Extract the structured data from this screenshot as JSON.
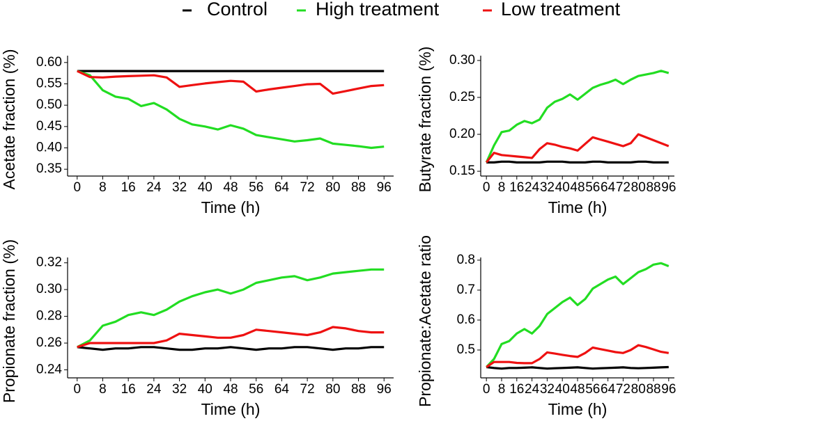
{
  "legend": {
    "items": [
      {
        "name": "Control",
        "color": "#000000"
      },
      {
        "name": "High treatment",
        "color": "#22dd22"
      },
      {
        "name": "Low treatment",
        "color": "#ee1111"
      }
    ]
  },
  "chart_data": [
    {
      "type": "line",
      "x_label": "Time (h)",
      "y_label": "Acetate fraction (%)",
      "x": [
        0,
        4,
        8,
        12,
        16,
        20,
        24,
        28,
        32,
        36,
        40,
        44,
        48,
        52,
        56,
        60,
        64,
        68,
        72,
        76,
        80,
        84,
        88,
        92,
        96
      ],
      "xlim": [
        -3,
        99
      ],
      "xticks": [
        0,
        8,
        16,
        24,
        32,
        40,
        48,
        56,
        64,
        72,
        80,
        88,
        96
      ],
      "ylim": [
        0.334,
        0.616
      ],
      "yticks": [
        {
          "value": 0.35,
          "label": "0.35"
        },
        {
          "value": 0.4,
          "label": "0.40"
        },
        {
          "value": 0.45,
          "label": "0.45"
        },
        {
          "value": 0.5,
          "label": "0.50"
        },
        {
          "value": 0.55,
          "label": "0.55"
        },
        {
          "value": 0.6,
          "label": "0.60"
        }
      ],
      "series": [
        {
          "color": "#000000",
          "values": [
            0.58,
            0.58,
            0.58,
            0.58,
            0.58,
            0.58,
            0.58,
            0.58,
            0.58,
            0.58,
            0.58,
            0.58,
            0.58,
            0.58,
            0.58,
            0.58,
            0.58,
            0.58,
            0.58,
            0.58,
            0.58,
            0.58,
            0.58,
            0.58,
            0.58
          ]
        },
        {
          "color": "#22dd22",
          "values": [
            0.58,
            0.57,
            0.535,
            0.52,
            0.515,
            0.498,
            0.505,
            0.49,
            0.468,
            0.455,
            0.45,
            0.443,
            0.453,
            0.445,
            0.43,
            0.425,
            0.42,
            0.415,
            0.418,
            0.422,
            0.41,
            0.407,
            0.404,
            0.4,
            0.403
          ]
        },
        {
          "color": "#ee1111",
          "values": [
            0.58,
            0.566,
            0.565,
            0.567,
            0.568,
            0.569,
            0.57,
            0.565,
            0.543,
            0.547,
            0.551,
            0.554,
            0.557,
            0.555,
            0.532,
            0.537,
            0.541,
            0.545,
            0.549,
            0.55,
            0.527,
            0.533,
            0.539,
            0.545,
            0.547
          ]
        }
      ]
    },
    {
      "type": "line",
      "x_label": "Time (h)",
      "y_label": "Butyrate fraction (%)",
      "x": [
        0,
        4,
        8,
        12,
        16,
        20,
        24,
        28,
        32,
        36,
        40,
        44,
        48,
        52,
        56,
        60,
        64,
        68,
        72,
        76,
        80,
        84,
        88,
        92,
        96
      ],
      "xlim": [
        -3,
        99
      ],
      "xticks": [
        0,
        8,
        16,
        24,
        32,
        40,
        48,
        56,
        64,
        72,
        80,
        88,
        96
      ],
      "ylim": [
        0.1435,
        0.3065
      ],
      "yticks": [
        0.15,
        {
          "value": 0.2,
          "label": "0.20"
        },
        0.25,
        {
          "value": 0.3,
          "label": "0.30"
        }
      ],
      "series": [
        {
          "color": "#000000",
          "values": [
            0.162,
            0.162,
            0.163,
            0.163,
            0.162,
            0.162,
            0.162,
            0.162,
            0.163,
            0.163,
            0.163,
            0.162,
            0.162,
            0.162,
            0.163,
            0.163,
            0.162,
            0.162,
            0.162,
            0.162,
            0.163,
            0.163,
            0.162,
            0.162,
            0.162
          ]
        },
        {
          "color": "#22dd22",
          "values": [
            0.162,
            0.185,
            0.203,
            0.205,
            0.213,
            0.218,
            0.215,
            0.22,
            0.236,
            0.244,
            0.248,
            0.254,
            0.247,
            0.255,
            0.263,
            0.267,
            0.27,
            0.274,
            0.268,
            0.274,
            0.279,
            0.281,
            0.283,
            0.286,
            0.283
          ]
        },
        {
          "color": "#ee1111",
          "values": [
            0.162,
            0.175,
            0.172,
            0.171,
            0.17,
            0.169,
            0.168,
            0.18,
            0.188,
            0.186,
            0.183,
            0.181,
            0.178,
            0.187,
            0.196,
            0.193,
            0.19,
            0.187,
            0.184,
            0.188,
            0.2,
            0.196,
            0.192,
            0.188,
            0.184
          ]
        }
      ]
    },
    {
      "type": "line",
      "x_label": "Time (h)",
      "y_label": "Propionate fraction (%)",
      "x": [
        0,
        4,
        8,
        12,
        16,
        20,
        24,
        28,
        32,
        36,
        40,
        44,
        48,
        52,
        56,
        60,
        64,
        68,
        72,
        76,
        80,
        84,
        88,
        92,
        96
      ],
      "xlim": [
        -3,
        99
      ],
      "xticks": [
        0,
        8,
        16,
        24,
        32,
        40,
        48,
        56,
        64,
        72,
        80,
        88,
        96
      ],
      "ylim": [
        0.234,
        0.324
      ],
      "yticks": [
        0.24,
        0.26,
        0.28,
        {
          "value": 0.3,
          "label": "0.30"
        },
        0.32
      ],
      "series": [
        {
          "color": "#000000",
          "values": [
            0.257,
            0.256,
            0.255,
            0.256,
            0.256,
            0.257,
            0.257,
            0.256,
            0.255,
            0.255,
            0.256,
            0.256,
            0.257,
            0.256,
            0.255,
            0.256,
            0.256,
            0.257,
            0.257,
            0.256,
            0.255,
            0.256,
            0.256,
            0.257,
            0.257
          ]
        },
        {
          "color": "#22dd22",
          "values": [
            0.257,
            0.262,
            0.273,
            0.276,
            0.281,
            0.283,
            0.281,
            0.285,
            0.291,
            0.295,
            0.298,
            0.3,
            0.297,
            0.3,
            0.305,
            0.307,
            0.309,
            0.31,
            0.307,
            0.309,
            0.312,
            0.313,
            0.314,
            0.315,
            0.315
          ]
        },
        {
          "color": "#ee1111",
          "values": [
            0.257,
            0.26,
            0.26,
            0.26,
            0.26,
            0.26,
            0.26,
            0.262,
            0.267,
            0.266,
            0.265,
            0.264,
            0.264,
            0.266,
            0.27,
            0.269,
            0.268,
            0.267,
            0.266,
            0.268,
            0.272,
            0.271,
            0.269,
            0.268,
            0.268
          ]
        }
      ]
    },
    {
      "type": "line",
      "x_label": "Time (h)",
      "y_label": "Propionate:Acetate ratio",
      "x": [
        0,
        4,
        8,
        12,
        16,
        20,
        24,
        28,
        32,
        36,
        40,
        44,
        48,
        52,
        56,
        60,
        64,
        68,
        72,
        76,
        80,
        84,
        88,
        92,
        96
      ],
      "xlim": [
        -3,
        99
      ],
      "xticks": [
        0,
        8,
        16,
        24,
        32,
        40,
        48,
        56,
        64,
        72,
        80,
        88,
        96
      ],
      "ylim": [
        0.407,
        0.809
      ],
      "yticks": [
        0.5,
        0.6,
        0.7,
        0.8
      ],
      "series": [
        {
          "color": "#000000",
          "values": [
            0.443,
            0.44,
            0.438,
            0.44,
            0.44,
            0.441,
            0.442,
            0.44,
            0.438,
            0.439,
            0.44,
            0.441,
            0.442,
            0.44,
            0.438,
            0.439,
            0.44,
            0.441,
            0.442,
            0.44,
            0.439,
            0.44,
            0.441,
            0.442,
            0.443
          ]
        },
        {
          "color": "#22dd22",
          "values": [
            0.443,
            0.47,
            0.52,
            0.53,
            0.555,
            0.57,
            0.555,
            0.58,
            0.62,
            0.64,
            0.66,
            0.675,
            0.65,
            0.67,
            0.705,
            0.72,
            0.735,
            0.745,
            0.72,
            0.74,
            0.76,
            0.77,
            0.785,
            0.79,
            0.78
          ]
        },
        {
          "color": "#ee1111",
          "values": [
            0.443,
            0.46,
            0.46,
            0.46,
            0.457,
            0.456,
            0.456,
            0.47,
            0.492,
            0.488,
            0.484,
            0.48,
            0.477,
            0.49,
            0.508,
            0.503,
            0.498,
            0.493,
            0.49,
            0.5,
            0.516,
            0.51,
            0.502,
            0.494,
            0.49
          ]
        }
      ]
    }
  ]
}
